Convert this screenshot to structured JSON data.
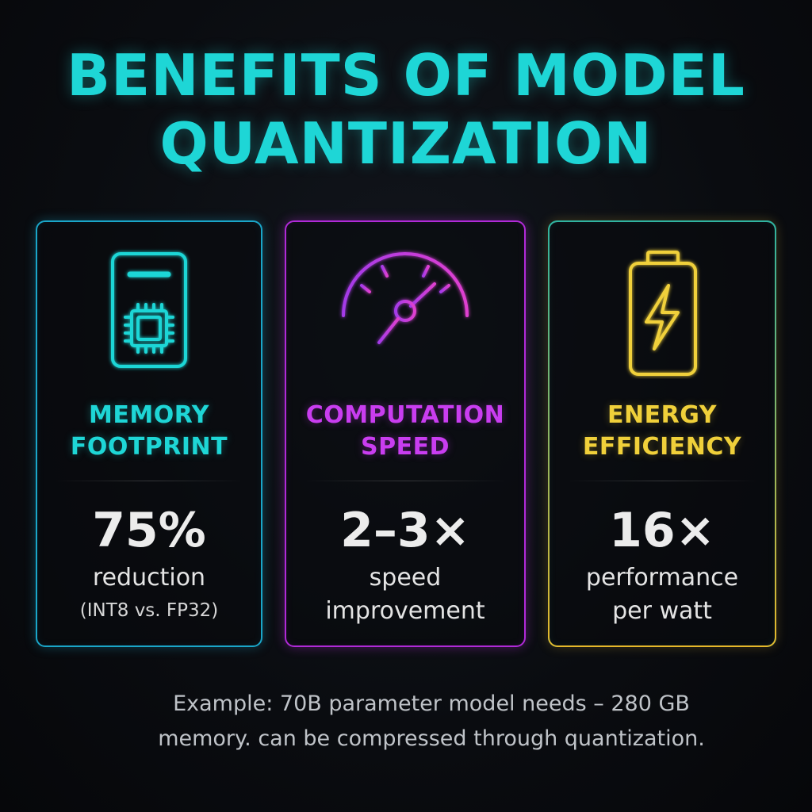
{
  "title": {
    "line1": "BENEFITS OF MODEL",
    "line2": "QUANTIZATION"
  },
  "cards": [
    {
      "icon": "memory-chip-icon",
      "title_line1": "MEMORY",
      "title_line2": "FOOTPRINT",
      "value": "75%",
      "desc_line1": "reduction",
      "desc_line2": "(INT8 vs. FP32)",
      "accent": "#1ed6d6"
    },
    {
      "icon": "speedometer-icon",
      "title_line1": "COMPUTATION",
      "title_line2": "SPEED",
      "value": "2–3×",
      "desc_line1": "speed",
      "desc_line2": "improvement",
      "accent": "#c93df0"
    },
    {
      "icon": "battery-icon",
      "title_line1": "ENERGY",
      "title_line2": "EFFICIENCY",
      "value": "16×",
      "desc_line1": "performance",
      "desc_line2": "per watt",
      "accent": "#f0d03a"
    }
  ],
  "footnote": {
    "line1": "Example: 70B parameter model needs – 280 GB",
    "line2": "memory. can be compressed through quantization."
  }
}
